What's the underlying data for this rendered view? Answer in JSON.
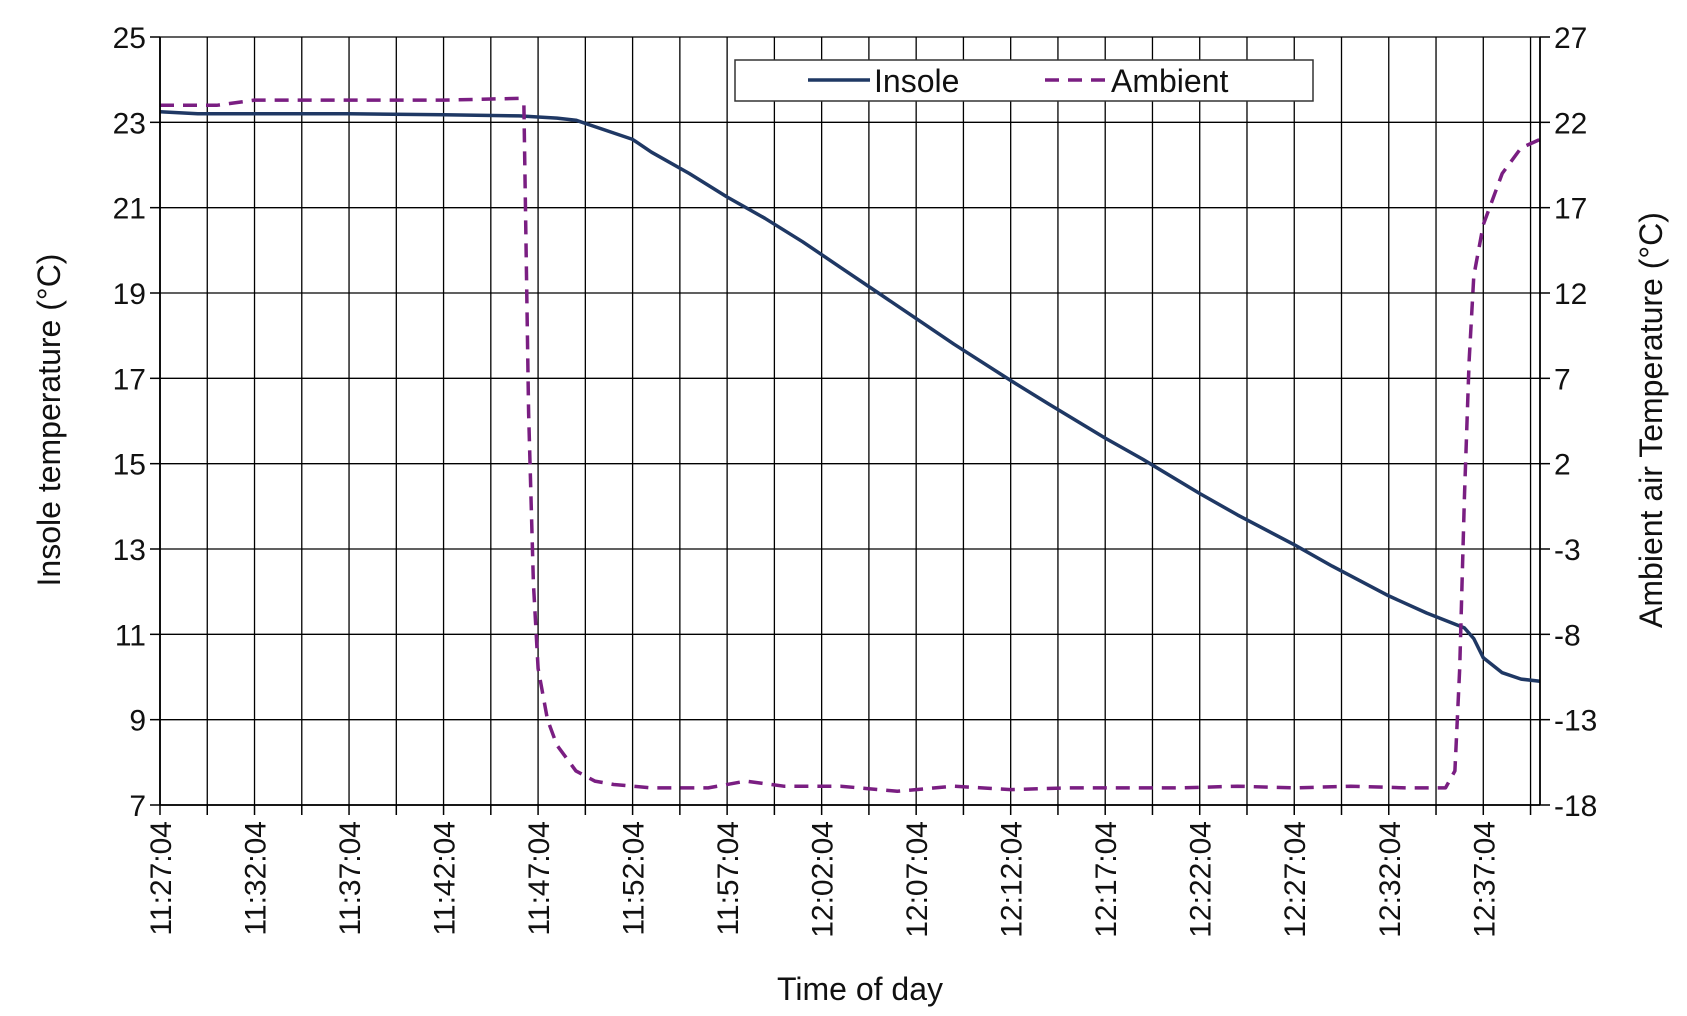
{
  "chart_data": {
    "type": "line",
    "xlabel": "Time of day",
    "ylabel_left": "Insole temperature (°C)",
    "ylabel_right": "Ambient air Temperature (°C)",
    "x_start": "11:27:04",
    "x_end": "12:40:04",
    "x_tick_labels": [
      "11:27:04",
      "11:32:04",
      "11:37:04",
      "11:42:04",
      "11:47:04",
      "11:52:04",
      "11:57:04",
      "12:02:04",
      "12:07:04",
      "12:12:04",
      "12:17:04",
      "12:22:04",
      "12:27:04",
      "12:32:04",
      "12:37:04"
    ],
    "left_yticks": [
      "7",
      "9",
      "11",
      "13",
      "15",
      "17",
      "19",
      "21",
      "23",
      "25"
    ],
    "right_yticks": [
      "-18",
      "-13",
      "-8",
      "-3",
      "2",
      "7",
      "12",
      "17",
      "22",
      "27"
    ],
    "ylim_left": [
      7,
      25
    ],
    "ylim_right": [
      -18,
      27
    ],
    "grid": true,
    "legend_position": "top-right",
    "series": [
      {
        "name": "Insole",
        "axis": "left",
        "color": "#1f3864",
        "style": "solid",
        "points": [
          [
            "11:27:04",
            23.25
          ],
          [
            "11:29:04",
            23.2
          ],
          [
            "11:32:04",
            23.2
          ],
          [
            "11:37:04",
            23.2
          ],
          [
            "11:42:04",
            23.18
          ],
          [
            "11:46:04",
            23.15
          ],
          [
            "11:48:04",
            23.1
          ],
          [
            "11:49:04",
            23.05
          ],
          [
            "11:50:04",
            22.9
          ],
          [
            "11:51:04",
            22.75
          ],
          [
            "11:52:04",
            22.6
          ],
          [
            "11:53:04",
            22.3
          ],
          [
            "11:55:04",
            21.8
          ],
          [
            "11:57:04",
            21.25
          ],
          [
            "11:59:04",
            20.75
          ],
          [
            "12:01:04",
            20.2
          ],
          [
            "12:03:04",
            19.6
          ],
          [
            "12:05:04",
            19.0
          ],
          [
            "12:07:04",
            18.4
          ],
          [
            "12:09:04",
            17.8
          ],
          [
            "12:12:04",
            16.95
          ],
          [
            "12:14:04",
            16.4
          ],
          [
            "12:17:04",
            15.6
          ],
          [
            "12:19:04",
            15.1
          ],
          [
            "12:22:04",
            14.3
          ],
          [
            "12:24:04",
            13.8
          ],
          [
            "12:27:04",
            13.1
          ],
          [
            "12:29:04",
            12.6
          ],
          [
            "12:32:04",
            11.9
          ],
          [
            "12:34:04",
            11.5
          ],
          [
            "12:36:04",
            11.15
          ],
          [
            "12:36:34",
            10.9
          ],
          [
            "12:37:04",
            10.45
          ],
          [
            "12:38:04",
            10.1
          ],
          [
            "12:39:04",
            9.95
          ],
          [
            "12:40:04",
            9.9
          ]
        ]
      },
      {
        "name": "Ambient",
        "axis": "right",
        "color": "#7a1e82",
        "style": "dashed",
        "points": [
          [
            "11:27:04",
            23.0
          ],
          [
            "11:30:04",
            23.0
          ],
          [
            "11:32:04",
            23.3
          ],
          [
            "11:37:04",
            23.3
          ],
          [
            "11:42:04",
            23.3
          ],
          [
            "11:46:04",
            23.4
          ],
          [
            "11:46:19",
            23.0
          ],
          [
            "11:46:34",
            5.0
          ],
          [
            "11:46:49",
            -5.0
          ],
          [
            "11:47:04",
            -10.0
          ],
          [
            "11:47:34",
            -13.0
          ],
          [
            "11:48:04",
            -14.5
          ],
          [
            "11:49:04",
            -16.0
          ],
          [
            "11:50:04",
            -16.6
          ],
          [
            "11:51:04",
            -16.8
          ],
          [
            "11:53:04",
            -17.0
          ],
          [
            "11:56:04",
            -17.0
          ],
          [
            "11:58:04",
            -16.6
          ],
          [
            "12:00:04",
            -16.9
          ],
          [
            "12:03:04",
            -16.9
          ],
          [
            "12:06:04",
            -17.2
          ],
          [
            "12:09:04",
            -16.9
          ],
          [
            "12:12:04",
            -17.1
          ],
          [
            "12:15:04",
            -17.0
          ],
          [
            "12:18:04",
            -17.0
          ],
          [
            "12:21:04",
            -17.0
          ],
          [
            "12:24:04",
            -16.9
          ],
          [
            "12:27:04",
            -17.0
          ],
          [
            "12:30:04",
            -16.9
          ],
          [
            "12:33:04",
            -17.0
          ],
          [
            "12:35:04",
            -17.0
          ],
          [
            "12:35:34",
            -16.0
          ],
          [
            "12:35:49",
            -10.0
          ],
          [
            "12:36:04",
            0.0
          ],
          [
            "12:36:19",
            8.0
          ],
          [
            "12:36:34",
            13.0
          ],
          [
            "12:37:04",
            16.0
          ],
          [
            "12:38:04",
            19.0
          ],
          [
            "12:39:04",
            20.5
          ],
          [
            "12:40:04",
            21.0
          ]
        ]
      }
    ]
  }
}
